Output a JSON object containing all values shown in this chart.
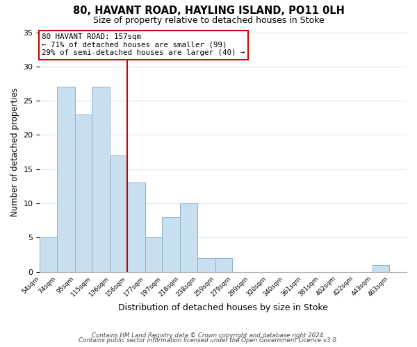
{
  "title": "80, HAVANT ROAD, HAYLING ISLAND, PO11 0LH",
  "subtitle": "Size of property relative to detached houses in Stoke",
  "xlabel": "Distribution of detached houses by size in Stoke",
  "ylabel": "Number of detached properties",
  "bar_color": "#c8dff0",
  "bar_edge_color": "#8ab4cc",
  "bin_edges": [
    54,
    74,
    95,
    115,
    136,
    156,
    177,
    197,
    218,
    238,
    259,
    279,
    299,
    320,
    340,
    361,
    381,
    402,
    422,
    443,
    463,
    483
  ],
  "bar_heights": [
    5,
    27,
    23,
    27,
    17,
    13,
    5,
    8,
    10,
    2,
    2,
    0,
    0,
    0,
    0,
    0,
    0,
    0,
    0,
    1,
    0
  ],
  "tick_labels": [
    "54sqm",
    "74sqm",
    "95sqm",
    "115sqm",
    "136sqm",
    "156sqm",
    "177sqm",
    "197sqm",
    "218sqm",
    "238sqm",
    "259sqm",
    "279sqm",
    "299sqm",
    "320sqm",
    "340sqm",
    "361sqm",
    "381sqm",
    "402sqm",
    "422sqm",
    "443sqm",
    "463sqm"
  ],
  "ylim": [
    0,
    35
  ],
  "yticks": [
    0,
    5,
    10,
    15,
    20,
    25,
    30,
    35
  ],
  "vline_x": 156,
  "vline_color": "#cc0000",
  "annotation_line1": "80 HAVANT ROAD: 157sqm",
  "annotation_line2": "← 71% of detached houses are smaller (99)",
  "annotation_line3": "29% of semi-detached houses are larger (40) →",
  "annotation_box_color": "#ffffff",
  "annotation_box_edgecolor": "#cc0000",
  "footer_line1": "Contains HM Land Registry data © Crown copyright and database right 2024.",
  "footer_line2": "Contains public sector information licensed under the Open Government Licence v3.0.",
  "background_color": "#ffffff",
  "grid_color": "#d8e8f0"
}
